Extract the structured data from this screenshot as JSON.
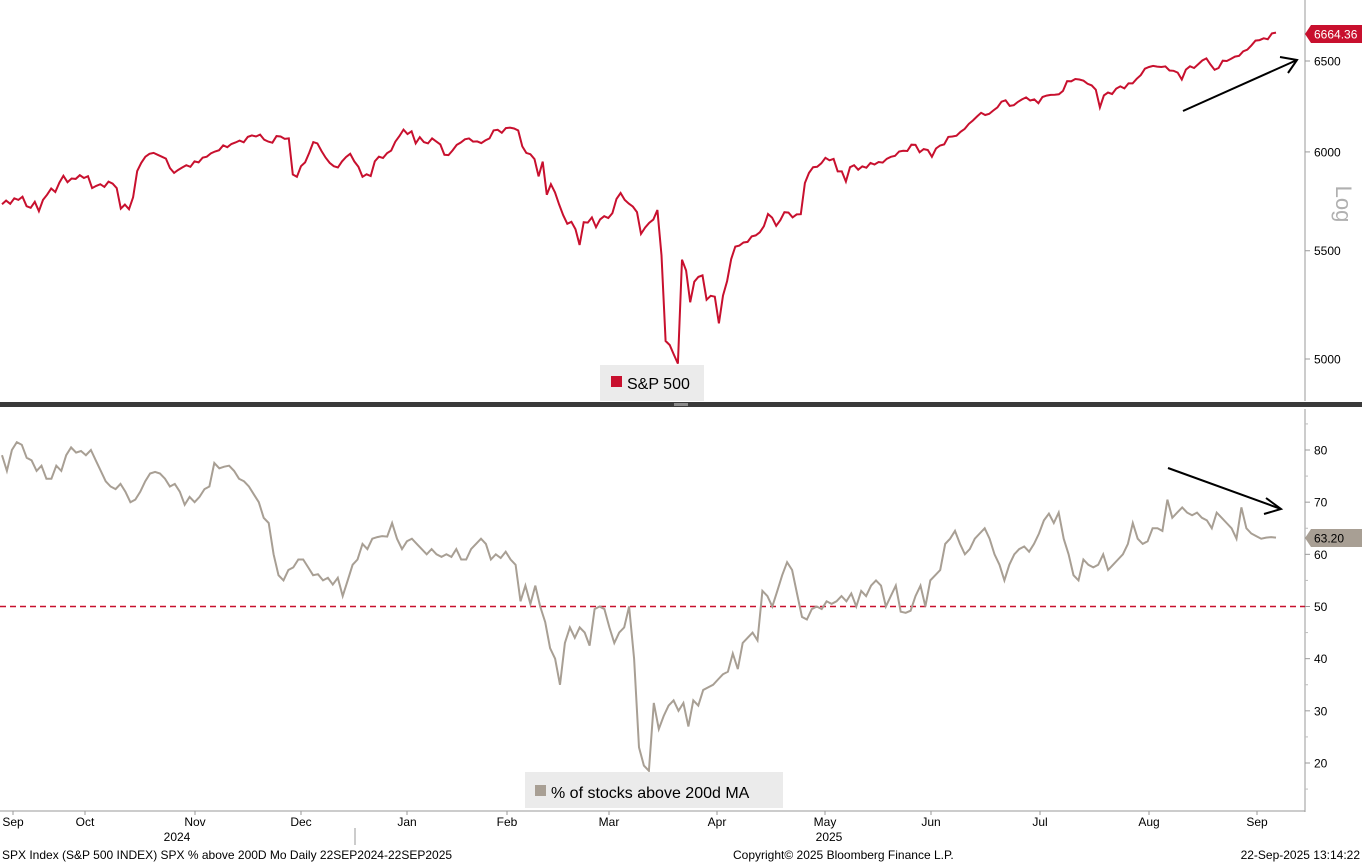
{
  "chart_data": [
    {
      "type": "line",
      "yscale": "log",
      "ylim": [
        4800,
        6800
      ],
      "yticks": [
        5000,
        5500,
        6000,
        6500
      ],
      "ylabel": "Log",
      "legend": "bottom-center",
      "series": [
        {
          "name": "S&P 500",
          "color": "#c8102e",
          "last_value_label": "6664.36",
          "values": [
            5730,
            5748,
            5732,
            5760,
            5752,
            5768,
            5720,
            5712,
            5742,
            5695,
            5752,
            5778,
            5810,
            5792,
            5840,
            5875,
            5842,
            5861,
            5859,
            5878,
            5864,
            5873,
            5812,
            5823,
            5832,
            5818,
            5845,
            5835,
            5812,
            5708,
            5728,
            5705,
            5765,
            5900,
            5943,
            5975,
            5990,
            5995,
            5985,
            5975,
            5965,
            5915,
            5890,
            5905,
            5918,
            5930,
            5922,
            5950,
            5945,
            5970,
            5975,
            5992,
            6002,
            6009,
            6035,
            6025,
            6042,
            6050,
            6060,
            6051,
            6080,
            6088,
            6082,
            6092,
            6065,
            6055,
            6049,
            6084,
            6082,
            6069,
            6072,
            5882,
            5870,
            5925,
            5945,
            5995,
            6052,
            6045,
            6005,
            5970,
            5942,
            5925,
            5918,
            5950,
            5973,
            5990,
            5950,
            5922,
            5870,
            5883,
            5874,
            5950,
            5975,
            5968,
            5994,
            6007,
            6054,
            6084,
            6119,
            6095,
            6110,
            6045,
            6078,
            6052,
            6045,
            6072,
            6056,
            6040,
            5985,
            5983,
            6008,
            6037,
            6050,
            6067,
            6072,
            6055,
            6056,
            6047,
            6061,
            6072,
            6115,
            6118,
            6102,
            6127,
            6130,
            6125,
            6114,
            6029,
            5995,
            5988,
            5962,
            5872,
            5949,
            5778,
            5832,
            5790,
            5729,
            5675,
            5632,
            5642,
            5605,
            5528,
            5640,
            5638,
            5664,
            5615,
            5654,
            5670,
            5661,
            5685,
            5757,
            5787,
            5752,
            5733,
            5718,
            5690,
            5582,
            5613,
            5637,
            5653,
            5701,
            5478,
            5080,
            5062,
            5020,
            4980,
            5457,
            5405,
            5256,
            5352,
            5375,
            5382,
            5268,
            5286,
            5282,
            5159,
            5287,
            5355,
            5460,
            5520,
            5525,
            5540,
            5543,
            5570,
            5575,
            5590,
            5620,
            5681,
            5663,
            5622,
            5650,
            5690,
            5688,
            5664,
            5679,
            5680,
            5838,
            5890,
            5920,
            5922,
            5940,
            5969,
            5956,
            5963,
            5898,
            5898,
            5845,
            5920,
            5930,
            5907,
            5924,
            5917,
            5942,
            5934,
            5947,
            5944,
            5964,
            5974,
            5979,
            6002,
            6006,
            6005,
            6038,
            6037,
            5998,
            6015,
            6010,
            5974,
            6018,
            6034,
            6040,
            6080,
            6082,
            6086,
            6107,
            6123,
            6150,
            6168,
            6190,
            6210,
            6198,
            6204,
            6223,
            6240,
            6271,
            6279,
            6248,
            6252,
            6270,
            6284,
            6295,
            6278,
            6284,
            6263,
            6297,
            6305,
            6309,
            6310,
            6312,
            6331,
            6386,
            6385,
            6398,
            6395,
            6388,
            6371,
            6362,
            6338,
            6240,
            6306,
            6322,
            6314,
            6344,
            6356,
            6345,
            6373,
            6373,
            6399,
            6420,
            6456,
            6466,
            6472,
            6468,
            6466,
            6469,
            6446,
            6444,
            6434,
            6395,
            6451,
            6470,
            6460,
            6481,
            6503,
            6515,
            6480,
            6450,
            6460,
            6502,
            6500,
            6512,
            6525,
            6530,
            6556,
            6565,
            6590,
            6618,
            6621,
            6631,
            6626,
            6660,
            6664.36
          ]
        }
      ],
      "annotation": "rising trend arrow"
    },
    {
      "type": "line",
      "ylim": [
        10,
        88
      ],
      "yticks": [
        20,
        30,
        40,
        50,
        60,
        70,
        80
      ],
      "reference_line": 50,
      "legend": "bottom-center",
      "series": [
        {
          "name": "% of stocks above 200d MA",
          "color": "#a89f94",
          "last_value_label": "63.20",
          "values": [
            79,
            76,
            80,
            81.5,
            81,
            78.5,
            78,
            76,
            77,
            74.5,
            74.5,
            77,
            76,
            79,
            80.5,
            79.5,
            79.8,
            79,
            80,
            78,
            76,
            74,
            73,
            72.5,
            73.5,
            72,
            70,
            70.5,
            72,
            74,
            75.5,
            75.8,
            75.5,
            74.5,
            73,
            73.5,
            72,
            69.5,
            71,
            70,
            71,
            72.5,
            73,
            77.5,
            76.5,
            76.8,
            77,
            76,
            74.5,
            74,
            73,
            71.5,
            70,
            67,
            66,
            60,
            56,
            55,
            57,
            57.5,
            59,
            59,
            57.5,
            56,
            56.2,
            55,
            55.5,
            54.2,
            55.5,
            52,
            55,
            58,
            59,
            62,
            61,
            63,
            63.3,
            63.5,
            63.4,
            66,
            63,
            61,
            62.5,
            63,
            62,
            61,
            60,
            61,
            60,
            59.5,
            60,
            59.5,
            61,
            59,
            59,
            61,
            62,
            63,
            62,
            59,
            60,
            59.3,
            60.5,
            59,
            58,
            51,
            54,
            50.5,
            54,
            50,
            47,
            42,
            40,
            35,
            43,
            46,
            44,
            46,
            45,
            42.5,
            49.5,
            50,
            49.5,
            46,
            43,
            45,
            46,
            50,
            40,
            23,
            19.5,
            18.5,
            31.5,
            26.5,
            29,
            31,
            32,
            30,
            31.5,
            27,
            32,
            31,
            34,
            34.5,
            35,
            36,
            37,
            37.5,
            41,
            38,
            43,
            44,
            45,
            43.5,
            53,
            52,
            50,
            53,
            56,
            58.5,
            57,
            52.5,
            48,
            47.5,
            49.5,
            50,
            49.5,
            51,
            50.5,
            51,
            52,
            51,
            52.5,
            50,
            53,
            52,
            54,
            55,
            54,
            50,
            52,
            54,
            49,
            48.8,
            49.2,
            52,
            54,
            50,
            55,
            56,
            57,
            62,
            63,
            64.5,
            62,
            60,
            61,
            63,
            64,
            65,
            63,
            60,
            58,
            55,
            58,
            60,
            61,
            61.5,
            60.5,
            62,
            64,
            66.5,
            67.8,
            66,
            68,
            63,
            60,
            56,
            55,
            59,
            58,
            57.5,
            58,
            60,
            57,
            58,
            59,
            60,
            62,
            66,
            63,
            62,
            62.5,
            65,
            65,
            64.5,
            70.5,
            67,
            68,
            69,
            68,
            67.5,
            68,
            67,
            66.5,
            65,
            68,
            67,
            66,
            65,
            63,
            69,
            65,
            64,
            63.5,
            63,
            63.2,
            63.3,
            63.2
          ]
        }
      ],
      "annotation": "declining trend arrow"
    }
  ],
  "x_axis": {
    "months": [
      "Sep",
      "Oct",
      "Nov",
      "Dec",
      "Jan",
      "Feb",
      "Mar",
      "Apr",
      "May",
      "Jun",
      "Jul",
      "Aug",
      "Sep"
    ],
    "years": [
      "2024",
      "2025"
    ]
  },
  "footer": {
    "left": "SPX Index (S&P 500 INDEX) SPX % above 200D Mo  Daily 22SEP2024-22SEP2025",
    "center": "Copyright© 2025 Bloomberg Finance L.P.",
    "right": "22-Sep-2025 13:14:22"
  }
}
